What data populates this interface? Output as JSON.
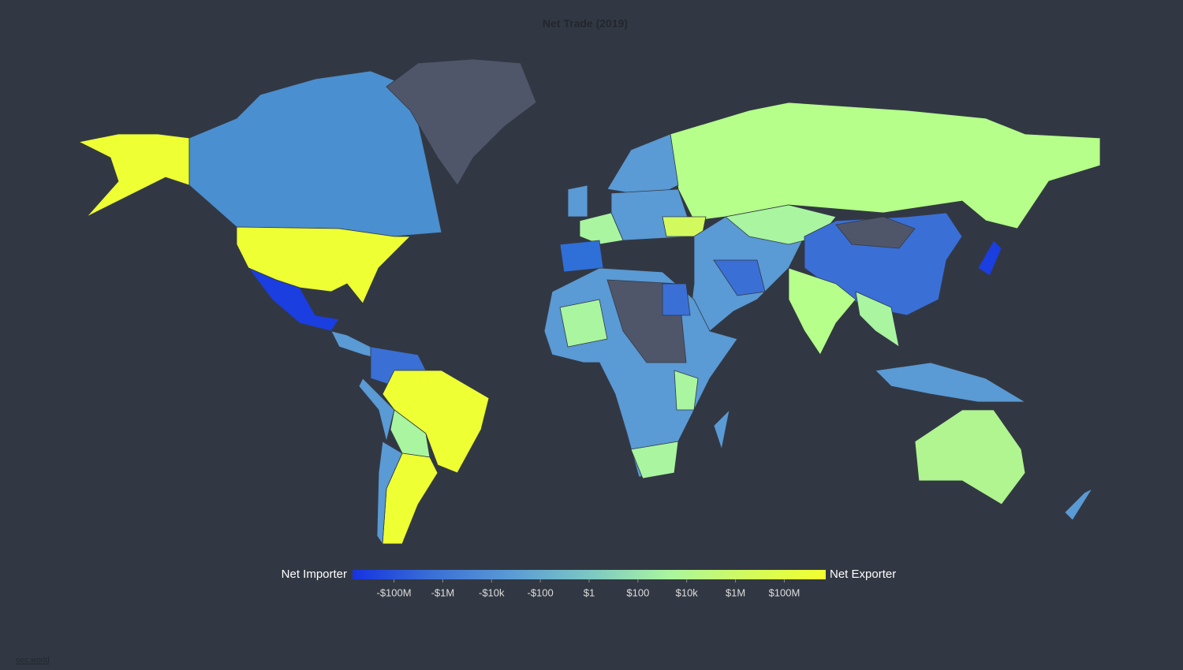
{
  "map": {
    "title": "Net Trade (2019)",
    "colorbar": {
      "min_label": "Net Importer",
      "max_label": "Net Exporter",
      "lim": [
        -5000000000,
        5000000000
      ],
      "colorscale": [
        "#1533e0",
        "#3a6fd6",
        "#5a9ad5",
        "#7cc7c4",
        "#a9f5a0",
        "#d2fa5e",
        "#f2ff2e"
      ],
      "ticks": [
        {
          "value": -100000000,
          "label": "-$100M"
        },
        {
          "value": -1000000,
          "label": "-$1M"
        },
        {
          "value": -10000,
          "label": "-$10k"
        },
        {
          "value": -100,
          "label": "-$100"
        },
        {
          "value": 1,
          "label": "$1"
        },
        {
          "value": 100,
          "label": "$100"
        },
        {
          "value": 10000,
          "label": "$10k"
        },
        {
          "value": 1000000,
          "label": "$1M"
        },
        {
          "value": 100000000,
          "label": "$100M"
        }
      ]
    },
    "source": "oec.world"
  }
}
